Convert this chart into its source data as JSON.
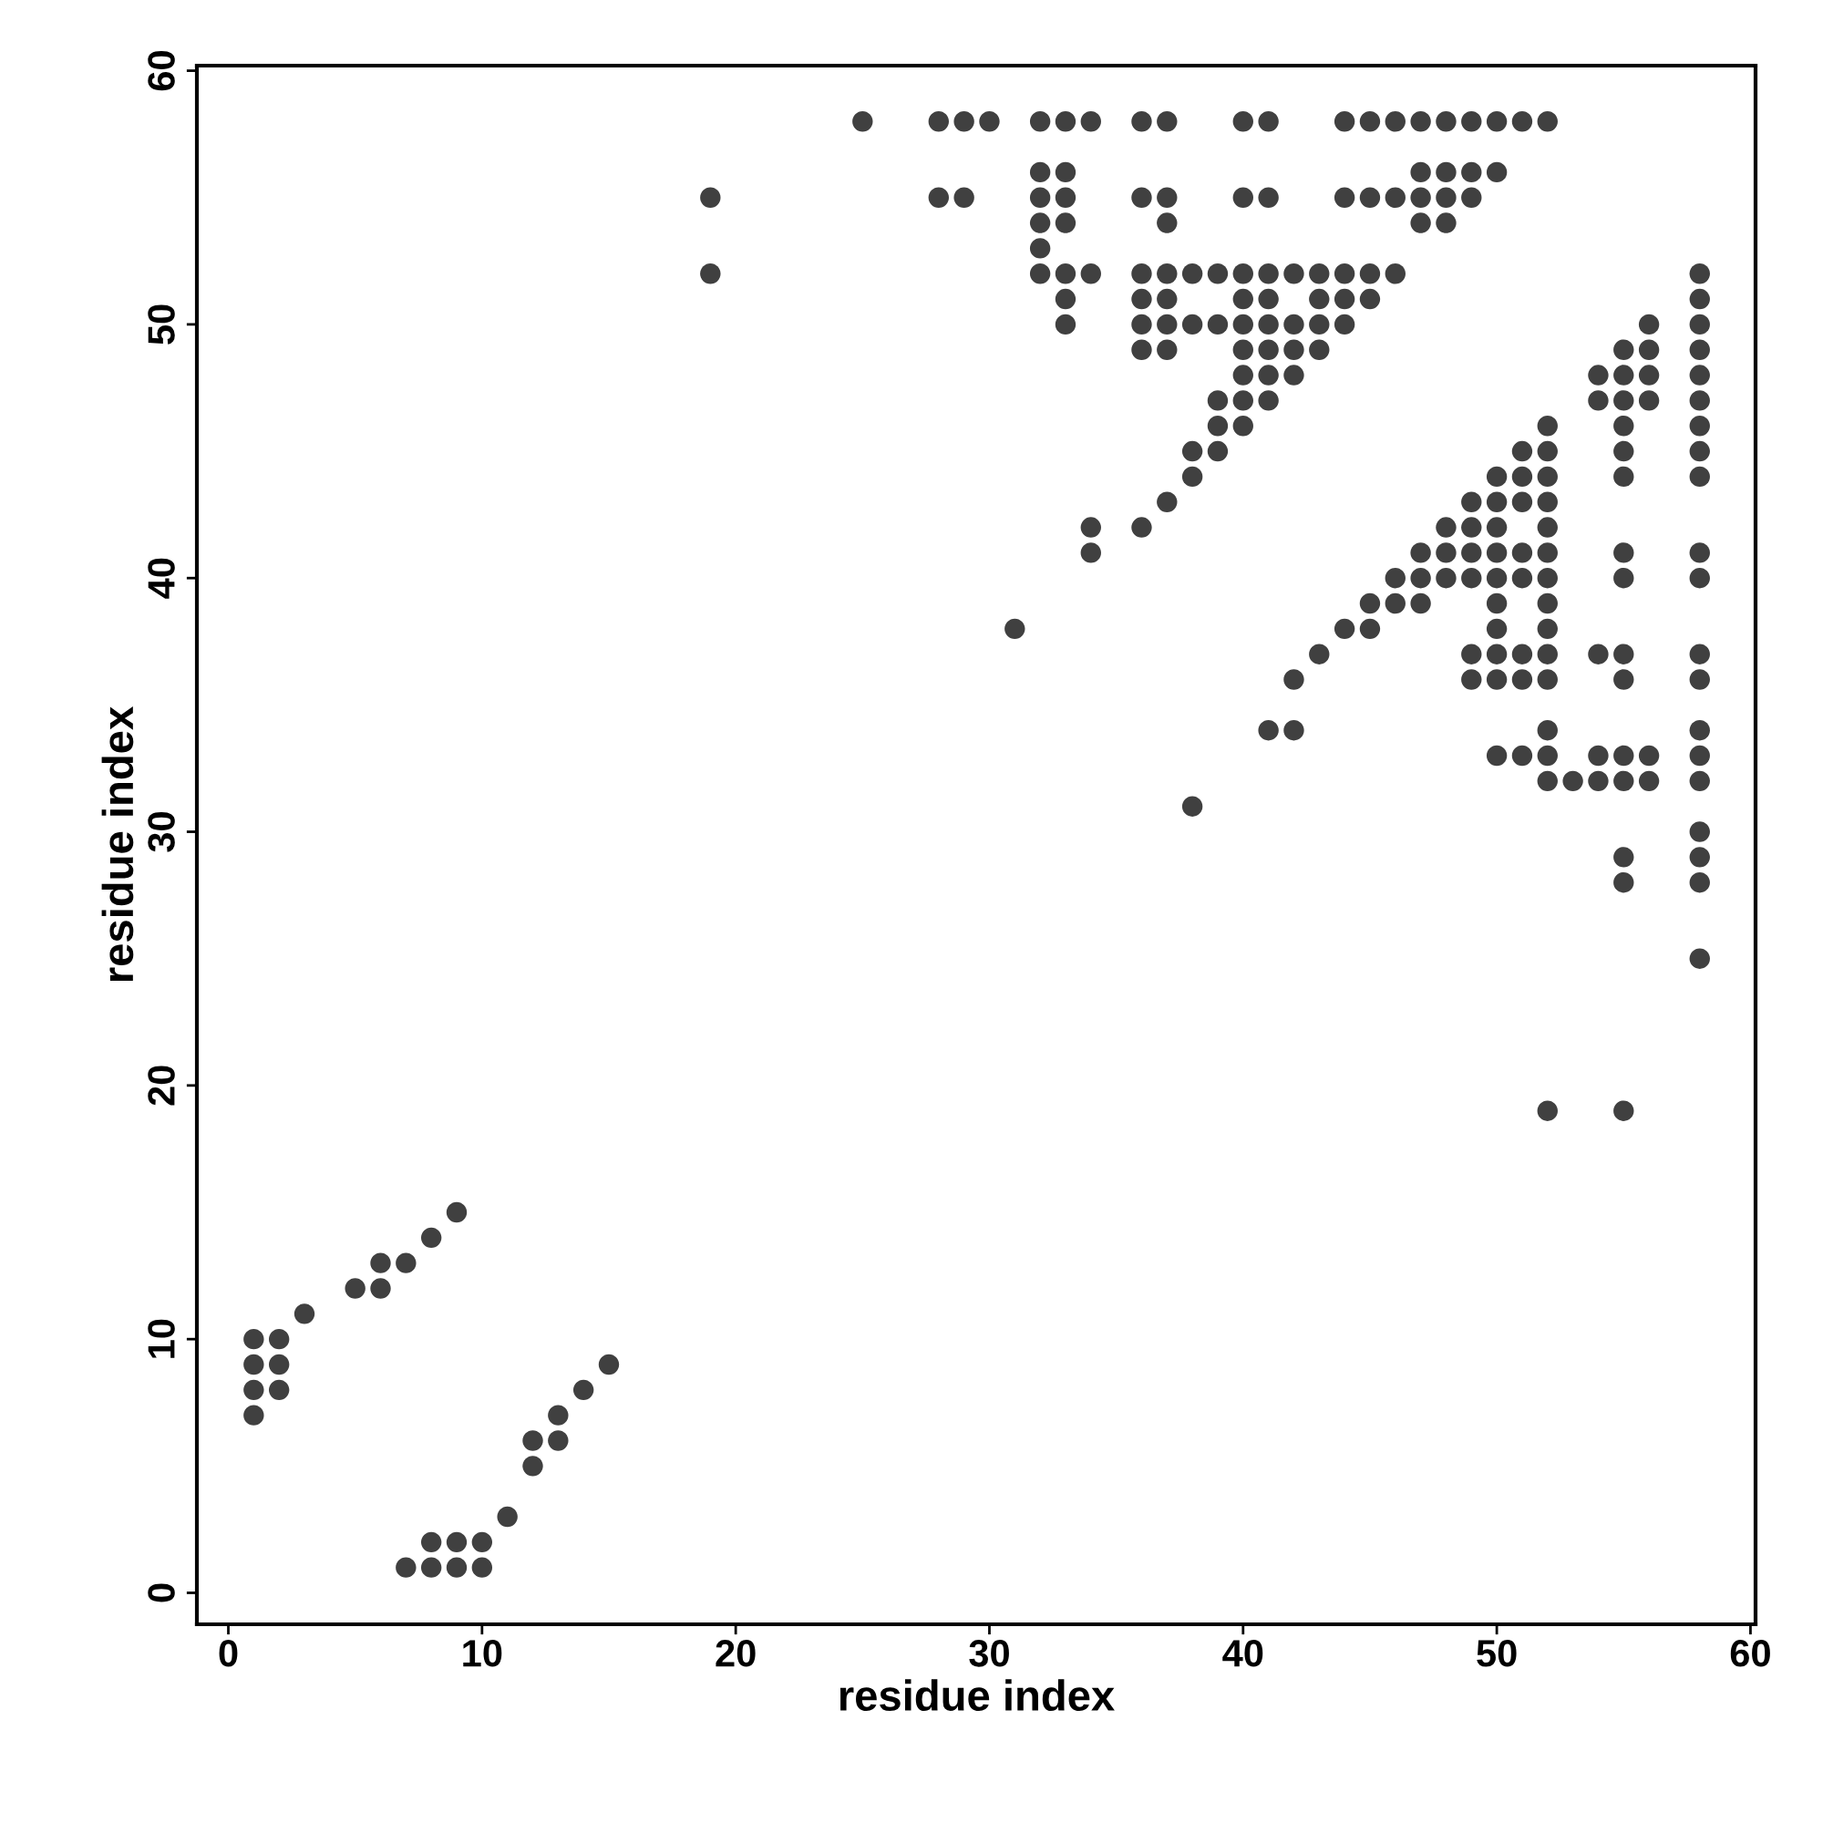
{
  "chart_data": {
    "type": "scatter",
    "xlabel": "residue index",
    "ylabel": "residue index",
    "xlim": [
      -1.24,
      60.2
    ],
    "ylim": [
      -1.24,
      60.2
    ],
    "xticks": [
      0,
      10,
      20,
      30,
      40,
      50,
      60
    ],
    "yticks": [
      0,
      10,
      20,
      30,
      40,
      50,
      60
    ],
    "grid": false,
    "marker": "circle",
    "series": [
      {
        "color": "#404040",
        "x": [
          25,
          28,
          29,
          30,
          32,
          33,
          34,
          36,
          37,
          40,
          41,
          44,
          45,
          46,
          47,
          48,
          49,
          50,
          51,
          52,
          32,
          33,
          47,
          48,
          49,
          50,
          19,
          28,
          29,
          32,
          33,
          36,
          37,
          40,
          41,
          44,
          45,
          46,
          47,
          48,
          49,
          32,
          33,
          37,
          47,
          48,
          32,
          19,
          32,
          33,
          34,
          36,
          37,
          38,
          39,
          40,
          41,
          42,
          43,
          44,
          45,
          46,
          58,
          33,
          36,
          37,
          40,
          41,
          43,
          44,
          45,
          58,
          33,
          36,
          37,
          38,
          39,
          40,
          41,
          42,
          43,
          44,
          56,
          58,
          36,
          37,
          40,
          41,
          42,
          43,
          55,
          56,
          58,
          40,
          41,
          42,
          54,
          55,
          56,
          58,
          39,
          40,
          41,
          54,
          55,
          56,
          58,
          39,
          40,
          52,
          55,
          58,
          38,
          39,
          51,
          52,
          55,
          58,
          38,
          50,
          51,
          52,
          55,
          58,
          37,
          49,
          50,
          51,
          52,
          34,
          36,
          48,
          49,
          50,
          52,
          34,
          47,
          48,
          49,
          50,
          51,
          52,
          55,
          58,
          46,
          47,
          48,
          49,
          50,
          51,
          52,
          55,
          58,
          45,
          46,
          47,
          50,
          52,
          31,
          44,
          45,
          50,
          52,
          43,
          49,
          50,
          51,
          52,
          54,
          55,
          58,
          42,
          49,
          50,
          51,
          52,
          55,
          58,
          41,
          42,
          52,
          58,
          50,
          51,
          52,
          54,
          55,
          56,
          58,
          52,
          53,
          54,
          55,
          56,
          58,
          38,
          58,
          55,
          58,
          55,
          58,
          58,
          52,
          55,
          9,
          8,
          6,
          7,
          5,
          6,
          3,
          1,
          2,
          1,
          2,
          15,
          1,
          2,
          14,
          1,
          13,
          12,
          13,
          12,
          11,
          8,
          9,
          10,
          7,
          8,
          9,
          10
        ],
        "values": [
          58,
          58,
          58,
          58,
          58,
          58,
          58,
          58,
          58,
          58,
          58,
          58,
          58,
          58,
          58,
          58,
          58,
          58,
          58,
          58,
          56,
          56,
          56,
          56,
          56,
          56,
          55,
          55,
          55,
          55,
          55,
          55,
          55,
          55,
          55,
          55,
          55,
          55,
          55,
          55,
          55,
          54,
          54,
          54,
          54,
          54,
          53,
          52,
          52,
          52,
          52,
          52,
          52,
          52,
          52,
          52,
          52,
          52,
          52,
          52,
          52,
          52,
          52,
          51,
          51,
          51,
          51,
          51,
          51,
          51,
          51,
          51,
          50,
          50,
          50,
          50,
          50,
          50,
          50,
          50,
          50,
          50,
          50,
          50,
          49,
          49,
          49,
          49,
          49,
          49,
          49,
          49,
          49,
          48,
          48,
          48,
          48,
          48,
          48,
          48,
          47,
          47,
          47,
          47,
          47,
          47,
          47,
          46,
          46,
          46,
          46,
          46,
          45,
          45,
          45,
          45,
          45,
          45,
          44,
          44,
          44,
          44,
          44,
          44,
          43,
          43,
          43,
          43,
          43,
          42,
          42,
          42,
          42,
          42,
          42,
          41,
          41,
          41,
          41,
          41,
          41,
          41,
          41,
          41,
          40,
          40,
          40,
          40,
          40,
          40,
          40,
          40,
          40,
          39,
          39,
          39,
          39,
          39,
          38,
          38,
          38,
          38,
          38,
          37,
          37,
          37,
          37,
          37,
          37,
          37,
          37,
          36,
          36,
          36,
          36,
          36,
          36,
          36,
          34,
          34,
          34,
          34,
          33,
          33,
          33,
          33,
          33,
          33,
          33,
          32,
          32,
          32,
          32,
          32,
          32,
          31,
          30,
          29,
          29,
          28,
          28,
          25,
          19,
          19,
          15,
          14,
          13,
          13,
          12,
          12,
          11,
          10,
          10,
          9,
          9,
          9,
          8,
          8,
          8,
          7,
          7,
          6,
          6,
          5,
          3,
          2,
          2,
          2,
          1,
          1,
          1,
          1
        ]
      }
    ]
  }
}
